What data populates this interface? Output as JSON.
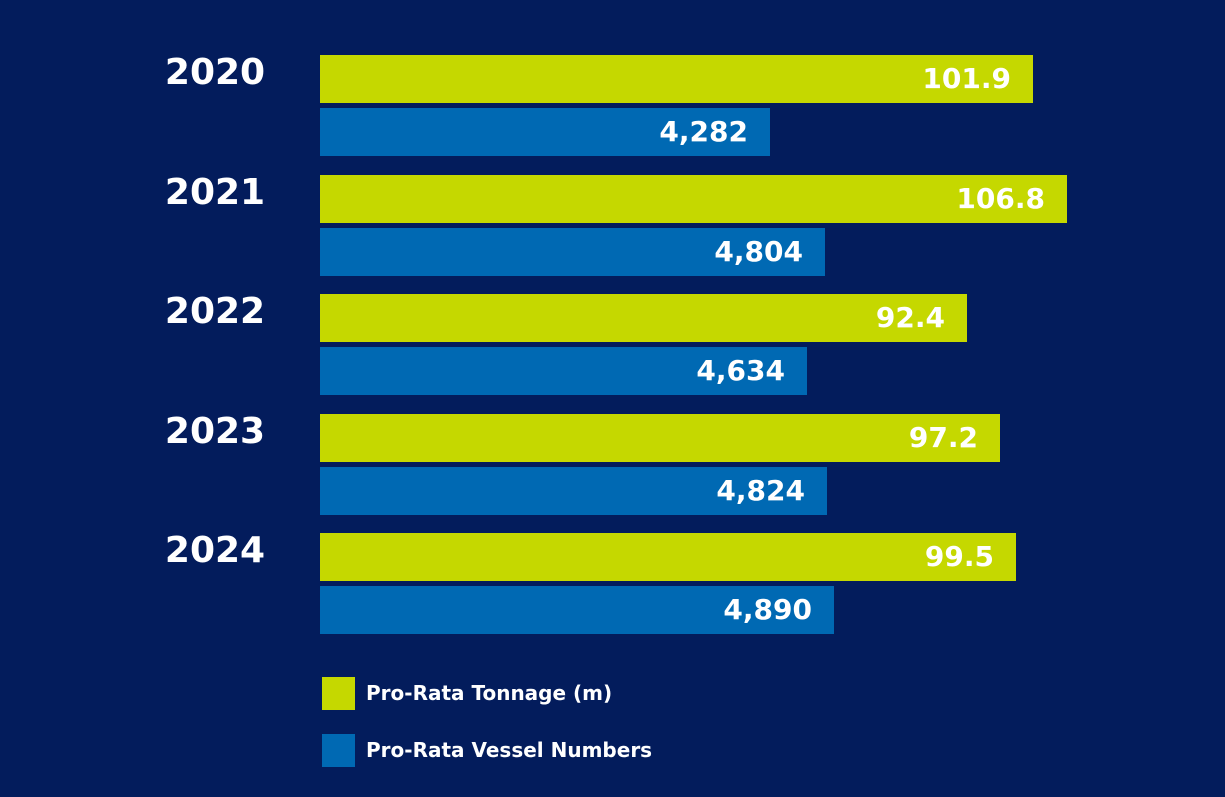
{
  "chart_data": {
    "type": "bar",
    "orientation": "horizontal",
    "categories": [
      "2020",
      "2021",
      "2022",
      "2023",
      "2024"
    ],
    "series": [
      {
        "name": "Pro-Rata Tonnage (m)",
        "values": [
          101.9,
          106.8,
          92.4,
          97.2,
          99.5
        ],
        "labels": [
          "101.9",
          "106.8",
          "92.4",
          "97.2",
          "99.5"
        ],
        "color": "#c5d800"
      },
      {
        "name": "Pro-Rata Vessel Numbers",
        "values": [
          4282,
          4804,
          4634,
          4824,
          4890
        ],
        "labels": [
          "4,282",
          "4,804",
          "4,634",
          "4,824",
          "4,890"
        ],
        "color": "#0069b3"
      }
    ],
    "legend_position": "bottom-left",
    "grid": false,
    "background_color": "#031c5c",
    "label_color": "#ffffff"
  }
}
